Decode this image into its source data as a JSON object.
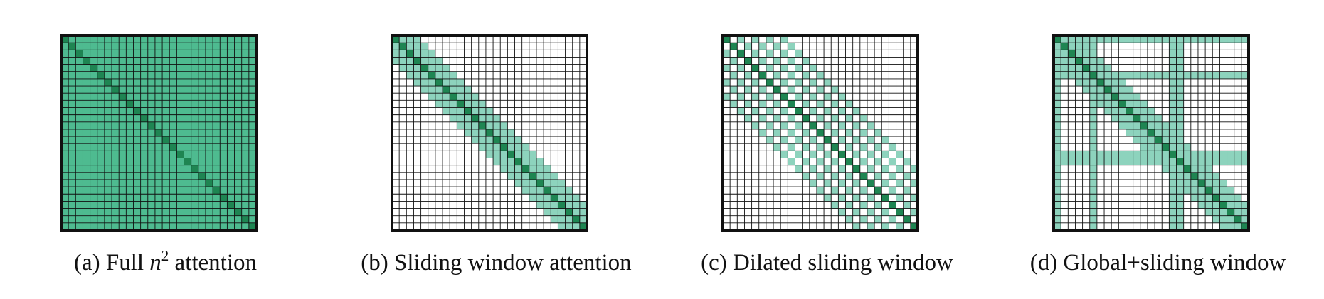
{
  "grid_size": 27,
  "colors": {
    "diagonal": "#1e8552",
    "attended": "#8dd3bd",
    "full": "#4ebb90",
    "empty": "#ffffff",
    "line": "#111111"
  },
  "panels": [
    {
      "pattern": "full",
      "caption": {
        "prefix": "(a) Full ",
        "math": "n",
        "sup": "2",
        "suffix": " attention"
      }
    },
    {
      "pattern": "sliding",
      "window_half_width": 3,
      "caption": {
        "prefix": "(b) Sliding window attention",
        "math": "",
        "sup": "",
        "suffix": ""
      }
    },
    {
      "pattern": "dilated",
      "window_half_width": 8,
      "dilation": 2,
      "caption": {
        "prefix": "(c) Dilated sliding window",
        "math": "",
        "sup": "",
        "suffix": ""
      }
    },
    {
      "pattern": "global_sliding",
      "window_half_width": 3,
      "global_indices": [
        0,
        5,
        16,
        17
      ],
      "caption": {
        "prefix": "(d) Global+sliding window",
        "math": "",
        "sup": "",
        "suffix": ""
      }
    }
  ]
}
